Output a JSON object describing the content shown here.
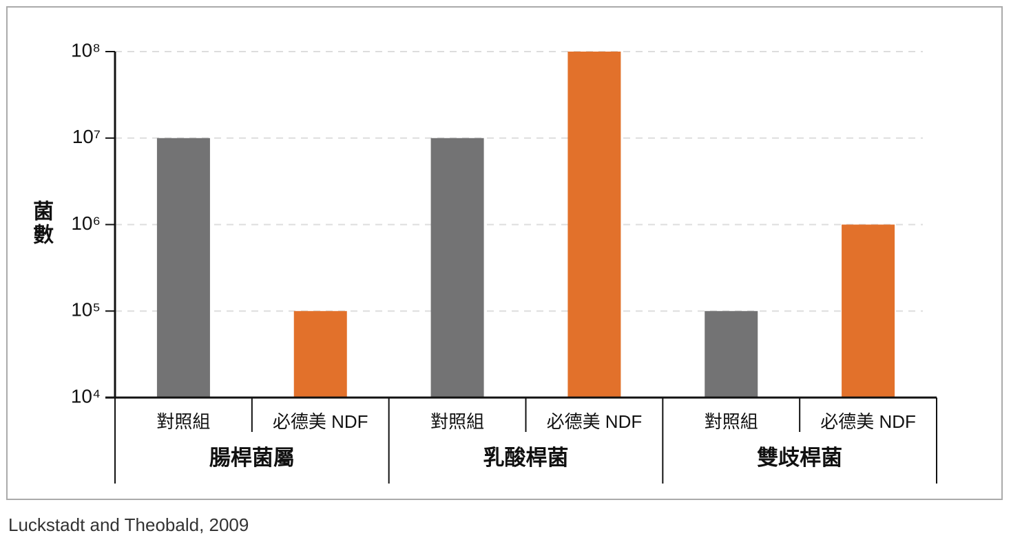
{
  "chart_data": {
    "type": "bar",
    "y_label": "菌數",
    "source": "Luckstadt and Theobald, 2009",
    "categories": [
      "腸桿菌屬",
      "乳酸桿菌",
      "雙歧桿菌"
    ],
    "series": [
      {
        "name": "對照組",
        "color": "#737374",
        "values": [
          10000000,
          10000000,
          100000
        ]
      },
      {
        "name": "必德美 NDF",
        "color": "#e2712b",
        "values": [
          100000,
          100000000,
          1000000
        ]
      }
    ],
    "log_scale": true,
    "ylim": [
      10000,
      100000000
    ],
    "yticks": [
      {
        "value": 10000,
        "label": "10⁴"
      },
      {
        "value": 100000,
        "label": "10⁵"
      },
      {
        "value": 1000000,
        "label": "10⁶"
      },
      {
        "value": 10000000,
        "label": "10⁷"
      },
      {
        "value": 100000000,
        "label": "10⁸"
      }
    ],
    "grid": true
  }
}
